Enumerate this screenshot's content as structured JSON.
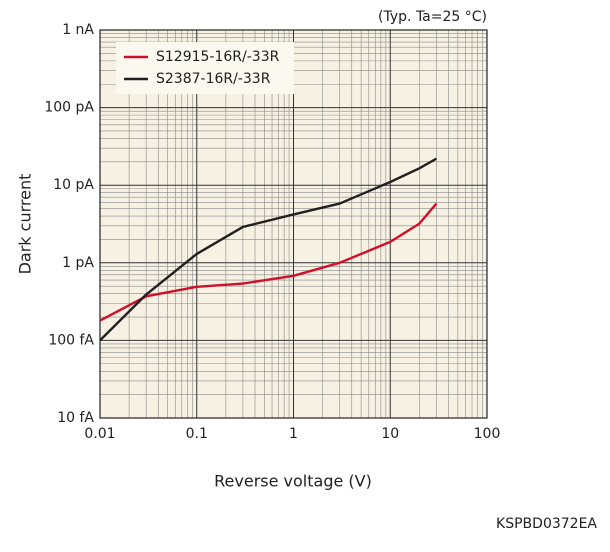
{
  "chart_data": {
    "type": "line",
    "annotation": "(Typ. Ta=25 °C)",
    "x_label": "Reverse voltage (V)",
    "y_label": "Dark current",
    "footer": "KSPBD0372EA",
    "x": [
      0.01,
      0.03,
      0.1,
      0.3,
      1,
      3,
      10,
      20,
      30
    ],
    "series": [
      {
        "name": "S12915-16R/-33R",
        "color": "#d0102a",
        "values": [
          0.18,
          0.37,
          0.49,
          0.54,
          0.68,
          1.0,
          1.86,
          3.2,
          5.8
        ]
      },
      {
        "name": "S2387-16R/-33R",
        "color": "#231f20",
        "values": [
          0.1,
          0.39,
          1.3,
          2.9,
          4.2,
          5.8,
          11,
          16.5,
          22
        ]
      }
    ],
    "xlim": [
      0.01,
      100
    ],
    "xticks": [
      0.01,
      0.1,
      1,
      10,
      100
    ],
    "ylim": [
      0.01,
      1000
    ],
    "yticks": [
      {
        "value": 0.01,
        "label": "10 fA"
      },
      {
        "value": 0.1,
        "label": "100 fA"
      },
      {
        "value": 1,
        "label": "1 pA"
      },
      {
        "value": 10,
        "label": "10 pA"
      },
      {
        "value": 100,
        "label": "100 pA"
      },
      {
        "value": 1000,
        "label": "1 nA"
      }
    ],
    "x_log": true,
    "y_log": true,
    "grid": true,
    "minor_grid": true,
    "legend": "upper left"
  }
}
